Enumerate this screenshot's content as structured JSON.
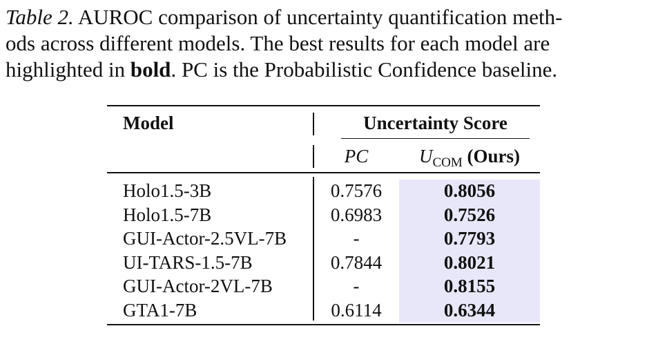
{
  "caption": {
    "label": "Table 2.",
    "line1": "AUROC comparison of uncertainty quantification meth-",
    "line2": "ods across different models. The best results for each model are",
    "line3_pre": "highlighted in",
    "line3_bold": "bold",
    "line3_post": ". PC is the Probabilistic Confidence baseline."
  },
  "table": {
    "header": {
      "model": "Model",
      "group": "Uncertainty Score",
      "pc": "PC",
      "ucom_symbol": "U",
      "ucom_sub": "COM",
      "ucom_suffix": "(Ours)"
    },
    "rows": [
      {
        "model": "Holo1.5-3B",
        "pc": "0.7576",
        "ucom": "0.8056"
      },
      {
        "model": "Holo1.5-7B",
        "pc": "0.6983",
        "ucom": "0.7526"
      },
      {
        "model": "GUI-Actor-2.5VL-7B",
        "pc": "-",
        "ucom": "0.7793"
      },
      {
        "model": "UI-TARS-1.5-7B",
        "pc": "0.7844",
        "ucom": "0.8021"
      },
      {
        "model": "GUI-Actor-2VL-7B",
        "pc": "-",
        "ucom": "0.8155"
      },
      {
        "model": "GTA1-7B",
        "pc": "0.6114",
        "ucom": "0.6344"
      }
    ],
    "highlight_color": "#e8e7fa"
  }
}
